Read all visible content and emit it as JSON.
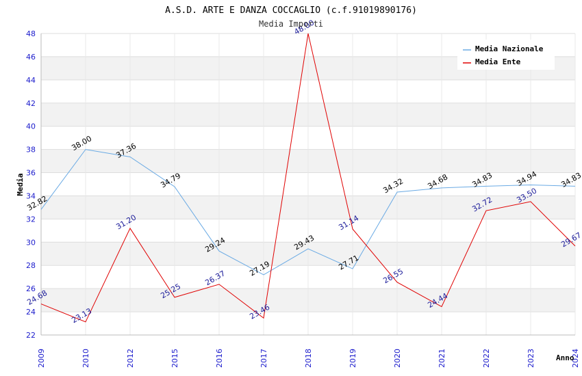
{
  "chart_data": {
    "type": "line",
    "title": "A.S.D. ARTE E DANZA COCCAGLIO (c.f.91019890176)",
    "subtitle": "Media Importi",
    "xlabel": "Anno",
    "ylabel": "Media",
    "ylim": [
      22,
      48
    ],
    "yticks": [
      22,
      24,
      26,
      28,
      30,
      32,
      34,
      36,
      38,
      40,
      42,
      44,
      46,
      48
    ],
    "categories": [
      "2009",
      "2010",
      "2012",
      "2015",
      "2016",
      "2017",
      "2018",
      "2019",
      "2020",
      "2021",
      "2022",
      "2023",
      "2024"
    ],
    "grid": true,
    "legend_position": "top-right",
    "series": [
      {
        "name": "Media Nazionale",
        "color": "#6aaae4",
        "values": [
          32.82,
          38.0,
          37.36,
          34.79,
          29.24,
          27.19,
          29.43,
          27.71,
          34.32,
          34.68,
          34.83,
          34.94,
          34.83
        ],
        "labels": [
          "32.82",
          "38.00",
          "37.36",
          "34.79",
          "29.24",
          "27.19",
          "29.43",
          "27.71",
          "34.32",
          "34.68",
          "34.83",
          "34.94",
          "34.83"
        ]
      },
      {
        "name": "Media Ente",
        "color": "#e00000",
        "values": [
          24.68,
          23.13,
          31.2,
          25.25,
          26.37,
          23.46,
          48.0,
          31.14,
          26.55,
          24.44,
          32.72,
          33.5,
          29.67
        ],
        "labels": [
          "24.68",
          "23.13",
          "31.20",
          "25.25",
          "26.37",
          "23.46",
          "48.00",
          "31.14",
          "26.55",
          "24.44",
          "32.72",
          "33.50",
          "29.67"
        ]
      }
    ]
  }
}
